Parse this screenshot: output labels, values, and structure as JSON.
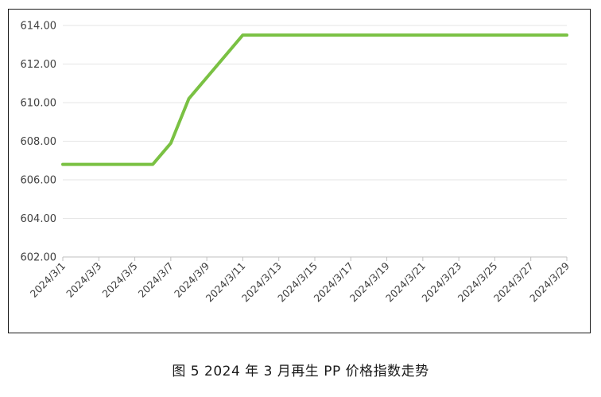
{
  "caption": "图 5  2024 年 3 月再生 PP 价格指数走势",
  "colors": {
    "line": "#7ac143",
    "grid": "#e6e6e6",
    "axis": "#bfbfbf",
    "text": "#404040",
    "border": "#1a1a1a"
  },
  "chart_data": {
    "type": "line",
    "title": "",
    "xlabel": "",
    "ylabel": "",
    "ylim": [
      602,
      614
    ],
    "yticks": [
      "602.00",
      "604.00",
      "606.00",
      "608.00",
      "610.00",
      "612.00",
      "614.00"
    ],
    "xtick_labels": [
      "2024/3/1",
      "2024/3/3",
      "2024/3/5",
      "2024/3/7",
      "2024/3/9",
      "2024/3/11",
      "2024/3/13",
      "2024/3/15",
      "2024/3/17",
      "2024/3/19",
      "2024/3/21",
      "2024/3/23",
      "2024/3/25",
      "2024/3/27",
      "2024/3/29"
    ],
    "grid": true,
    "legend": "none",
    "series": [
      {
        "name": "",
        "x": [
          "2024/3/1",
          "2024/3/4",
          "2024/3/6",
          "2024/3/7",
          "2024/3/8",
          "2024/3/11",
          "2024/3/29"
        ],
        "y": [
          606.8,
          606.8,
          606.8,
          607.9,
          610.2,
          613.5,
          613.5
        ]
      }
    ]
  }
}
